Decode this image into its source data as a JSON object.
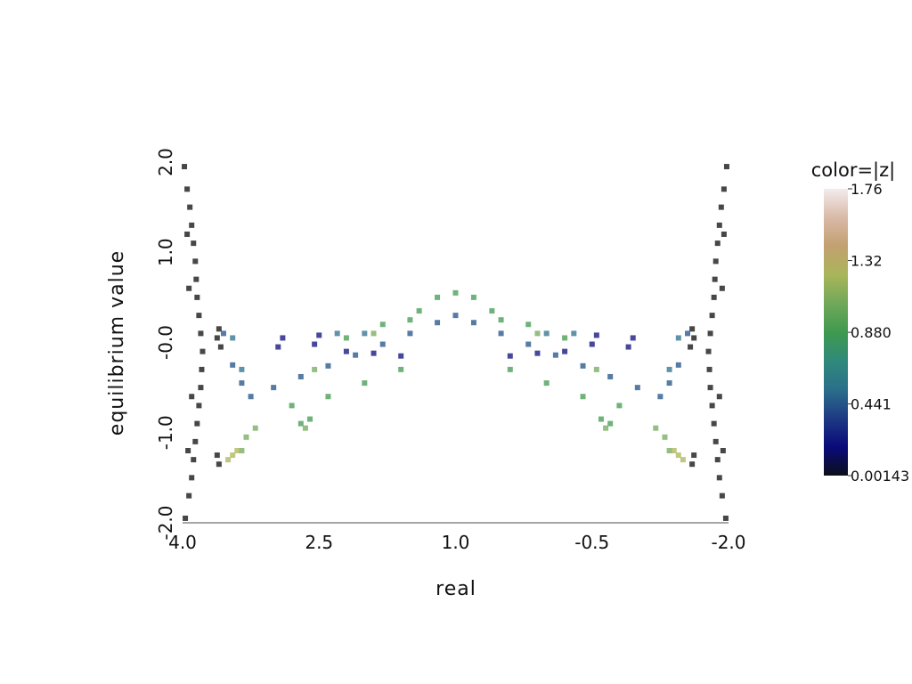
{
  "chart_data": {
    "type": "scatter",
    "title": "",
    "xlabel": "real",
    "ylabel": "equilibrium value",
    "xlim": [
      4.0,
      -2.0
    ],
    "ylim": [
      -2.0,
      2.0
    ],
    "x_ticks": [
      "4.0",
      "2.5",
      "1.0",
      "-0.5",
      "-2.0"
    ],
    "y_ticks": [
      "-2.0",
      "-1.0",
      "-0.0",
      "1.0",
      "2.0"
    ],
    "grid": false,
    "colorbar": {
      "title": "color=|z|",
      "min": 0.00143,
      "max": 1.76,
      "tick_labels": [
        "1.76",
        "1.32",
        "0.880",
        "0.441",
        "0.00143"
      ],
      "tick_values": [
        1.76,
        1.32,
        0.88,
        0.441,
        0.00143
      ],
      "colormap": [
        "#0b0f1a",
        "#0a0a7a",
        "#1e3a84",
        "#2b6f8a",
        "#2f8a7a",
        "#3f9a4f",
        "#70a85a",
        "#a9b55a",
        "#c2a070",
        "#d9b9a8",
        "#f2ecec"
      ]
    },
    "series": [
      {
        "color": "#0a0a0a",
        "points": [
          [
            3.98,
            1.95
          ],
          [
            3.95,
            1.7
          ],
          [
            3.92,
            1.5
          ],
          [
            3.9,
            1.3
          ],
          [
            3.88,
            1.1
          ],
          [
            3.86,
            0.9
          ],
          [
            3.85,
            0.7
          ],
          [
            3.84,
            0.5
          ],
          [
            3.82,
            0.3
          ],
          [
            3.8,
            0.1
          ],
          [
            3.78,
            -0.1
          ],
          [
            3.79,
            -0.3
          ],
          [
            3.8,
            -0.5
          ],
          [
            3.82,
            -0.7
          ],
          [
            3.84,
            -0.9
          ],
          [
            3.86,
            -1.1
          ],
          [
            3.88,
            -1.3
          ],
          [
            3.9,
            -1.5
          ],
          [
            3.93,
            -1.7
          ],
          [
            3.97,
            -1.95
          ],
          [
            3.95,
            1.2
          ],
          [
            3.93,
            0.6
          ],
          [
            3.9,
            -0.6
          ],
          [
            3.94,
            -1.2
          ],
          [
            3.6,
            0.15
          ],
          [
            3.58,
            -0.05
          ],
          [
            3.62,
            0.05
          ],
          [
            3.6,
            -1.35
          ],
          [
            3.62,
            -1.25
          ],
          [
            -1.98,
            1.95
          ],
          [
            -1.95,
            1.7
          ],
          [
            -1.92,
            1.5
          ],
          [
            -1.9,
            1.3
          ],
          [
            -1.88,
            1.1
          ],
          [
            -1.86,
            0.9
          ],
          [
            -1.85,
            0.7
          ],
          [
            -1.84,
            0.5
          ],
          [
            -1.82,
            0.3
          ],
          [
            -1.8,
            0.1
          ],
          [
            -1.78,
            -0.1
          ],
          [
            -1.79,
            -0.3
          ],
          [
            -1.8,
            -0.5
          ],
          [
            -1.82,
            -0.7
          ],
          [
            -1.84,
            -0.9
          ],
          [
            -1.86,
            -1.1
          ],
          [
            -1.88,
            -1.3
          ],
          [
            -1.9,
            -1.5
          ],
          [
            -1.93,
            -1.7
          ],
          [
            -1.97,
            -1.95
          ],
          [
            -1.95,
            1.2
          ],
          [
            -1.93,
            0.6
          ],
          [
            -1.9,
            -0.6
          ],
          [
            -1.94,
            -1.2
          ],
          [
            -1.6,
            0.15
          ],
          [
            -1.58,
            -0.05
          ],
          [
            -1.62,
            0.05
          ],
          [
            -1.6,
            -1.35
          ],
          [
            -1.62,
            -1.25
          ]
        ]
      },
      {
        "color": "#1e4f86",
        "points": [
          [
            3.25,
            -0.6
          ],
          [
            3.0,
            -0.5
          ],
          [
            2.7,
            -0.38
          ],
          [
            2.4,
            -0.26
          ],
          [
            2.1,
            -0.14
          ],
          [
            1.8,
            -0.02
          ],
          [
            1.5,
            0.1
          ],
          [
            1.2,
            0.22
          ],
          [
            1.0,
            0.3
          ],
          [
            0.8,
            0.22
          ],
          [
            0.5,
            0.1
          ],
          [
            0.2,
            -0.02
          ],
          [
            -0.1,
            -0.14
          ],
          [
            -0.4,
            -0.26
          ],
          [
            -0.7,
            -0.38
          ],
          [
            -1.0,
            -0.5
          ],
          [
            -1.25,
            -0.6
          ],
          [
            3.55,
            0.1
          ],
          [
            3.45,
            -0.25
          ],
          [
            3.35,
            -0.45
          ],
          [
            -1.55,
            0.1
          ],
          [
            -1.45,
            -0.25
          ],
          [
            -1.35,
            -0.45
          ]
        ]
      },
      {
        "color": "#0a0a7a",
        "points": [
          [
            2.95,
            -0.05
          ],
          [
            2.9,
            0.05
          ],
          [
            2.55,
            -0.02
          ],
          [
            2.5,
            0.08
          ],
          [
            2.2,
            -0.1
          ],
          [
            1.9,
            -0.12
          ],
          [
            1.6,
            -0.15
          ],
          [
            0.4,
            -0.15
          ],
          [
            0.1,
            -0.12
          ],
          [
            -0.2,
            -0.1
          ],
          [
            -0.5,
            -0.02
          ],
          [
            -0.55,
            0.08
          ],
          [
            -0.9,
            -0.05
          ],
          [
            -0.95,
            0.05
          ]
        ]
      },
      {
        "color": "#3f9a4f",
        "points": [
          [
            2.8,
            -0.7
          ],
          [
            2.6,
            -0.85
          ],
          [
            2.4,
            -0.6
          ],
          [
            2.2,
            0.05
          ],
          [
            2.0,
            -0.45
          ],
          [
            1.8,
            0.2
          ],
          [
            1.6,
            -0.3
          ],
          [
            1.4,
            0.35
          ],
          [
            1.2,
            0.5
          ],
          [
            1.0,
            0.55
          ],
          [
            0.8,
            0.5
          ],
          [
            0.6,
            0.35
          ],
          [
            0.4,
            -0.3
          ],
          [
            0.2,
            0.2
          ],
          [
            0.0,
            -0.45
          ],
          [
            -0.2,
            0.05
          ],
          [
            -0.4,
            -0.6
          ],
          [
            -0.6,
            -0.85
          ],
          [
            -0.8,
            -0.7
          ],
          [
            2.7,
            -0.9
          ],
          [
            -0.7,
            -0.9
          ],
          [
            1.5,
            0.25
          ],
          [
            0.5,
            0.25
          ]
        ]
      },
      {
        "color": "#70a85a",
        "points": [
          [
            3.35,
            -1.2
          ],
          [
            3.3,
            -1.05
          ],
          [
            3.2,
            -0.95
          ],
          [
            2.65,
            -0.95
          ],
          [
            2.55,
            -0.3
          ],
          [
            1.9,
            0.1
          ],
          [
            0.1,
            0.1
          ],
          [
            -0.55,
            -0.3
          ],
          [
            -0.65,
            -0.95
          ],
          [
            -1.2,
            -0.95
          ],
          [
            -1.3,
            -1.05
          ],
          [
            -1.35,
            -1.2
          ]
        ]
      },
      {
        "color": "#a9b55a",
        "points": [
          [
            3.5,
            -1.3
          ],
          [
            3.45,
            -1.25
          ],
          [
            3.4,
            -1.2
          ],
          [
            -1.4,
            -1.2
          ],
          [
            -1.45,
            -1.25
          ],
          [
            -1.5,
            -1.3
          ]
        ]
      },
      {
        "color": "#2b6f8a",
        "points": [
          [
            3.45,
            0.05
          ],
          [
            3.35,
            -0.3
          ],
          [
            2.3,
            0.1
          ],
          [
            2.0,
            0.1
          ],
          [
            0.0,
            0.1
          ],
          [
            -0.3,
            0.1
          ],
          [
            -1.35,
            -0.3
          ],
          [
            -1.45,
            0.05
          ]
        ]
      }
    ]
  }
}
